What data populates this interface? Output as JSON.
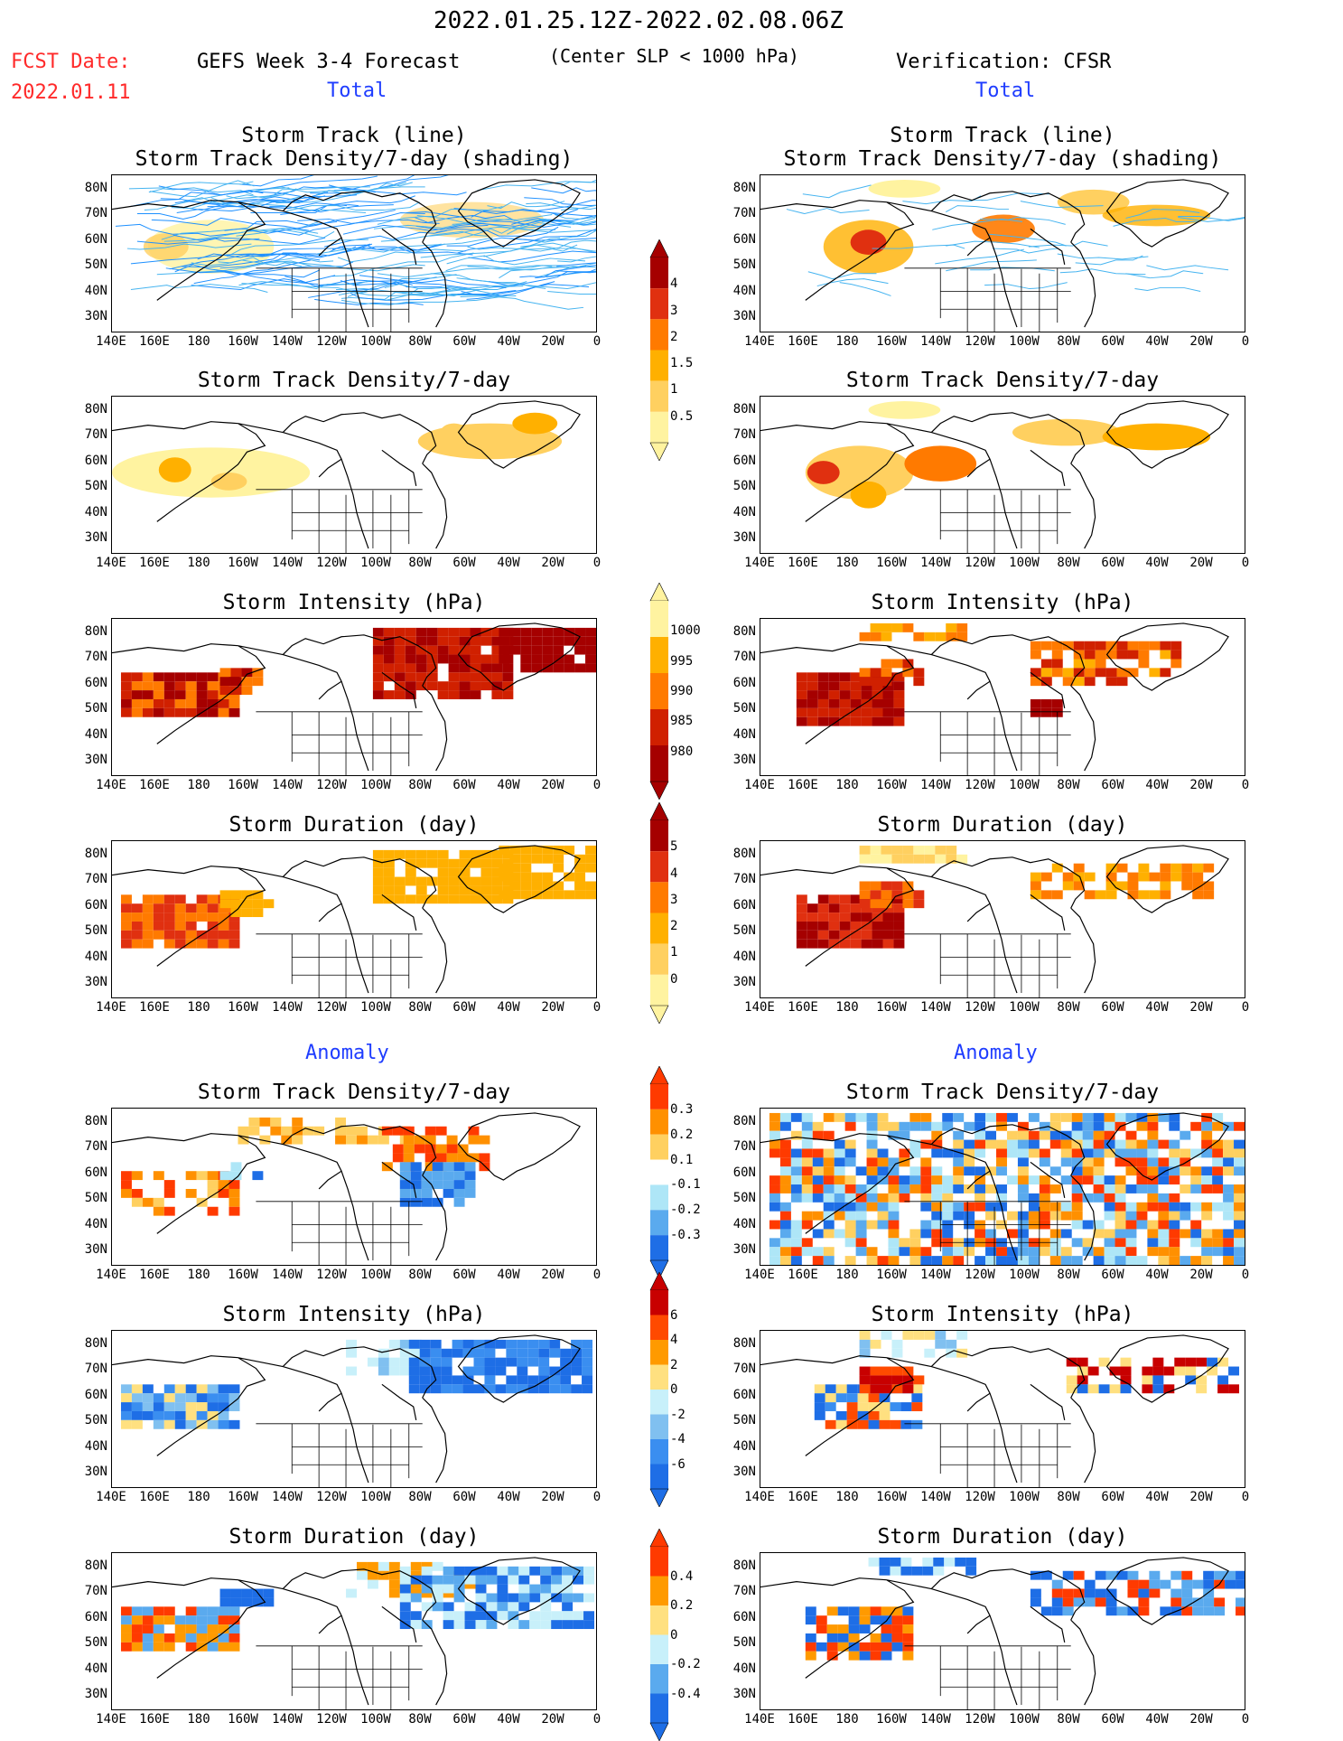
{
  "header": {
    "date_range": "2022.01.25.12Z-2022.02.08.06Z",
    "fcst_label": "FCST Date:",
    "fcst_date": "2022.01.11",
    "model_title": "GEFS Week 3-4 Forecast",
    "criterion": "(Center SLP < 1000 hPa)",
    "verification": "Verification: CFSR",
    "total_label": "Total",
    "anomaly_label": "Anomaly"
  },
  "axes": {
    "lat_ticks": [
      "80N",
      "70N",
      "60N",
      "50N",
      "40N",
      "30N"
    ],
    "lon_ticks": [
      "140E",
      "160E",
      "180",
      "160W",
      "140W",
      "120W",
      "100W",
      "80W",
      "60W",
      "40W",
      "20W",
      "0"
    ]
  },
  "rows": [
    {
      "title_line1": "Storm Track (line)",
      "title_line2": "Storm Track Density/7-day (shading)"
    },
    {
      "title_line1": "Storm Track Density/7-day",
      "title_line2": ""
    },
    {
      "title_line1": "Storm Intensity (hPa)",
      "title_line2": ""
    },
    {
      "title_line1": "Storm Duration (day)",
      "title_line2": ""
    },
    {
      "title_line1": "Storm Track Density/7-day",
      "title_line2": ""
    },
    {
      "title_line1": "Storm Intensity (hPa)",
      "title_line2": ""
    },
    {
      "title_line1": "Storm Duration (day)",
      "title_line2": ""
    }
  ],
  "colorbars": [
    {
      "labels": [
        "4",
        "3",
        "2",
        "1.5",
        "1",
        "0.5"
      ],
      "colors": [
        "#a50000",
        "#e03010",
        "#ff7a00",
        "#ffb000",
        "#ffd060",
        "#fff3a0"
      ]
    },
    {
      "labels": [
        "1000",
        "995",
        "990",
        "985",
        "980"
      ],
      "colors": [
        "#fff3a0",
        "#ffb000",
        "#ff7a00",
        "#d02000",
        "#a50000"
      ]
    },
    {
      "labels": [
        "5",
        "4",
        "3",
        "2",
        "1",
        "0"
      ],
      "colors": [
        "#a50000",
        "#e03010",
        "#ff7a00",
        "#ffb000",
        "#ffd060",
        "#fff3a0"
      ]
    },
    {
      "labels": [
        "0.3",
        "0.2",
        "0.1",
        "-0.1",
        "-0.2",
        "-0.3"
      ],
      "colors": [
        "#ff3a00",
        "#ff9000",
        "#ffd060",
        "#ffffff",
        "#aee6f7",
        "#5aaaee",
        "#1e6ee6"
      ]
    },
    {
      "labels": [
        "6",
        "4",
        "2",
        "0",
        "-2",
        "-4",
        "-6"
      ],
      "colors": [
        "#c80000",
        "#ff4a00",
        "#ff9a00",
        "#ffe080",
        "#c8f0fa",
        "#80c0f0",
        "#3a8ef0",
        "#1e6ee6"
      ]
    },
    {
      "labels": [
        "0.4",
        "0.2",
        "0",
        "-0.2",
        "-0.4"
      ],
      "colors": [
        "#ff3a00",
        "#ff9a00",
        "#ffe080",
        "#c8f0fa",
        "#5aaaee",
        "#1e6ee6"
      ]
    }
  ],
  "palette": {
    "track_line": "#1e90ff",
    "track_line_light": "#46b4f0",
    "blue_label": "#1f3dff",
    "red_label": "#ff2a2a"
  }
}
